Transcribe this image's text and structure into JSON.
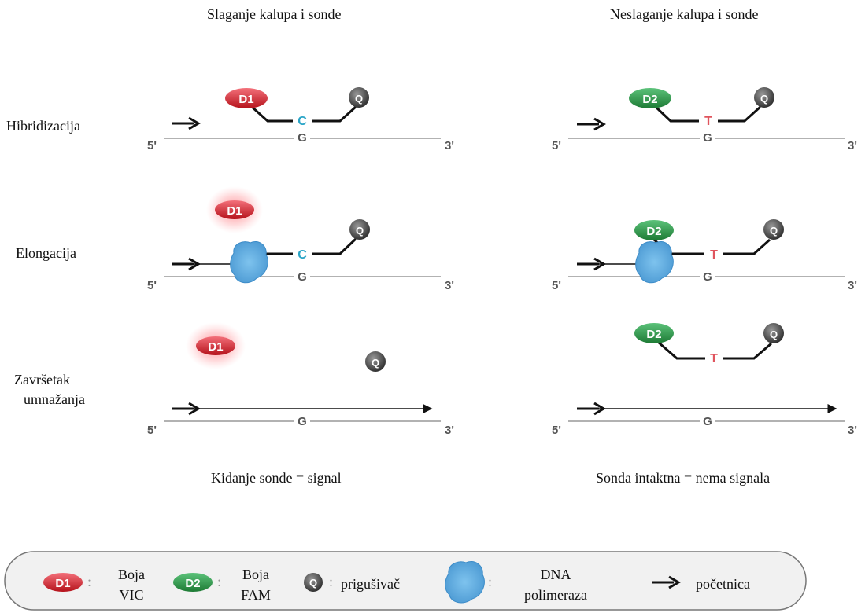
{
  "headers": {
    "left": "Slaganje kalupa i sonde",
    "right": "Neslaganje kalupa i sonde"
  },
  "rows": {
    "hybridization": "Hibridizacija",
    "elongation": "Elongacija",
    "completion_line1": "Završetak",
    "completion_line2": "umnažanja"
  },
  "results": {
    "left": "Kidanje sonde = signal",
    "right": "Sonda intaktna = nema signala"
  },
  "strand": {
    "five_prime": "5'",
    "three_prime": "3'",
    "template_base": "G"
  },
  "probe": {
    "match_base": "C",
    "mismatch_base": "T",
    "quencher": "Q",
    "dye1": "D1",
    "dye2": "D2"
  },
  "legend": {
    "d1_tag": "D1",
    "d1_line1": "Boja",
    "d1_line2": "VIC",
    "d2_tag": "D2",
    "d2_line1": "Boja",
    "d2_line2": "FAM",
    "q_tag": "Q",
    "quencher_label": "prigušivač",
    "polymerase_line1": "DNA",
    "polymerase_line2": "polimeraza",
    "primer_label": "početnica",
    "colon": ":"
  },
  "colors": {
    "dye_vic": "#d9262c",
    "dye_fam": "#2e9a46",
    "quencher": "#444444",
    "polymerase": "#6fb3e0",
    "match_base": "#2aa5c7",
    "mismatch_base": "#e0555e"
  }
}
